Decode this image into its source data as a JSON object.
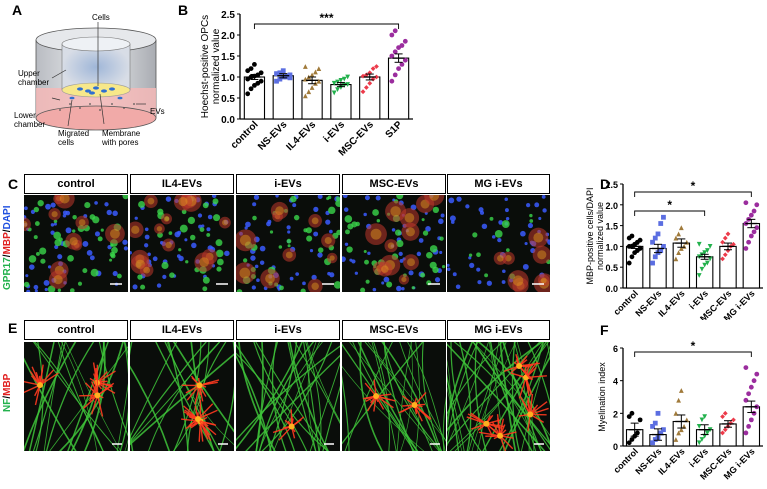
{
  "panels": {
    "a": "A",
    "b": "B",
    "c": "C",
    "d": "D",
    "e": "E",
    "f": "F"
  },
  "diagram": {
    "cells": "Cells",
    "upper_chamber": "Upper\nchamber",
    "lower_chamber": "Lower\nchamber",
    "evs": "EVs",
    "migrated_cells": "Migrated\ncells",
    "membrane": "Membrane\nwith pores"
  },
  "row_c": {
    "y_label_parts": [
      "GPR17",
      "/",
      "MBP",
      "/",
      "DAPI"
    ],
    "columns": [
      "control",
      "IL4-EVs",
      "i-EVs",
      "MSC-EVs",
      "MG i-EVs"
    ]
  },
  "row_e": {
    "y_label_parts": [
      "NF",
      "/",
      "MBP"
    ],
    "columns": [
      "control",
      "IL4-EVs",
      "i-EVs",
      "MSC-EVs",
      "MG i-EVs"
    ]
  },
  "colors": {
    "control": "#000000",
    "ns": "#5b6ee1",
    "il4": "#a07a3a",
    "iev": "#22b14c",
    "msc": "#ec3a4a",
    "s1p": "#9b2d9e",
    "mgi": "#9b2d9e"
  },
  "chart_data": [
    {
      "id": "B",
      "type": "bar",
      "ylabel": "Hoechst-positive OPCs\nnormalized value",
      "categories": [
        "control",
        "NS-EVs",
        "IL4-EVs",
        "i-EVs",
        "MSC-EVs",
        "S1P"
      ],
      "values": [
        1.0,
        1.03,
        0.92,
        0.82,
        1.0,
        1.45
      ],
      "errors": [
        0.06,
        0.05,
        0.08,
        0.05,
        0.07,
        0.1
      ],
      "ylim": [
        0,
        2.5
      ],
      "yticks": [
        "0.0",
        "0.5",
        "1.0",
        "1.5",
        "2.0",
        "2.5"
      ],
      "significance": [
        {
          "from": "control",
          "to": "S1P",
          "label": "***"
        }
      ],
      "points": [
        [
          0.6,
          0.72,
          0.8,
          0.85,
          0.9,
          0.95,
          1.0,
          1.02,
          1.05,
          1.1,
          1.15,
          1.2,
          1.3
        ],
        [
          0.9,
          0.95,
          1.0,
          1.02,
          1.05,
          1.08,
          1.1,
          1.15,
          1.0,
          0.98
        ],
        [
          0.55,
          0.65,
          0.75,
          0.85,
          0.9,
          0.95,
          1.0,
          1.05,
          1.12,
          1.2,
          1.25
        ],
        [
          0.62,
          0.7,
          0.75,
          0.8,
          0.82,
          0.85,
          0.88,
          0.92,
          0.95,
          1.0
        ],
        [
          0.65,
          0.75,
          0.85,
          0.95,
          1.0,
          1.02,
          1.05,
          1.1,
          1.2,
          1.25
        ],
        [
          0.9,
          1.05,
          1.2,
          1.3,
          1.4,
          1.5,
          1.6,
          1.7,
          1.75,
          1.85,
          2.0,
          2.1
        ]
      ]
    },
    {
      "id": "D",
      "type": "bar",
      "ylabel": "MBP-positive cells/DAPI\nnormalized value",
      "categories": [
        "control",
        "NS-EVs",
        "IL4-EVs",
        "i-EVs",
        "MSC-EVs",
        "MG i-EVs"
      ],
      "values": [
        1.0,
        0.95,
        1.08,
        0.75,
        1.0,
        1.55
      ],
      "errors": [
        0.05,
        0.1,
        0.1,
        0.06,
        0.08,
        0.1
      ],
      "ylim": [
        0,
        2.5
      ],
      "yticks": [
        "0.0",
        "0.5",
        "1.0",
        "1.5",
        "2.0",
        "2.5"
      ],
      "significance": [
        {
          "from": "control",
          "to": "MG i-EVs",
          "label": "*"
        },
        {
          "from": "control",
          "to": "i-EVs",
          "label": "*"
        }
      ],
      "points": [
        [
          0.6,
          0.75,
          0.85,
          0.9,
          0.95,
          1.0,
          1.0,
          1.05,
          1.1,
          1.15,
          1.2,
          1.25
        ],
        [
          0.6,
          0.75,
          0.85,
          0.9,
          1.0,
          1.1,
          1.2,
          1.3,
          1.55,
          1.7
        ],
        [
          0.7,
          0.85,
          0.95,
          1.0,
          1.1,
          1.2,
          1.3,
          1.45
        ],
        [
          0.3,
          0.45,
          0.55,
          0.6,
          0.7,
          0.75,
          0.8,
          0.85,
          0.9,
          1.0,
          1.05
        ],
        [
          0.7,
          0.8,
          0.9,
          1.0,
          1.05,
          1.1,
          1.2,
          1.3
        ],
        [
          0.95,
          1.1,
          1.25,
          1.35,
          1.45,
          1.55,
          1.65,
          1.75,
          1.85,
          2.0,
          2.05
        ]
      ]
    },
    {
      "id": "F",
      "type": "bar",
      "ylabel": "Myelination index",
      "categories": [
        "control",
        "NS-EVs",
        "IL4-EVs",
        "i-EVs",
        "MSC-EVs",
        "MG i-EVs"
      ],
      "values": [
        1.0,
        0.7,
        1.5,
        1.0,
        1.35,
        2.4
      ],
      "errors": [
        0.4,
        0.35,
        0.4,
        0.3,
        0.2,
        0.35
      ],
      "ylim": [
        0,
        6
      ],
      "yticks": [
        "0",
        "2",
        "4",
        "6"
      ],
      "significance": [
        {
          "from": "control",
          "to": "MG i-EVs",
          "label": "*"
        }
      ],
      "points": [
        [
          0.2,
          0.4,
          0.6,
          0.8,
          1.6,
          1.8,
          2.0
        ],
        [
          0.2,
          0.4,
          0.5,
          0.8,
          1.0,
          1.2,
          1.4,
          2.0
        ],
        [
          0.4,
          0.8,
          1.0,
          1.2,
          1.6,
          2.0,
          2.8,
          3.4
        ],
        [
          0.2,
          0.4,
          0.6,
          0.8,
          1.0,
          1.2,
          1.6,
          1.8
        ],
        [
          0.8,
          1.0,
          1.2,
          1.4,
          1.6,
          1.8,
          2.0
        ],
        [
          0.8,
          1.2,
          1.6,
          2.0,
          2.4,
          2.8,
          3.2,
          3.6,
          4.0,
          4.4,
          4.8
        ]
      ]
    }
  ]
}
